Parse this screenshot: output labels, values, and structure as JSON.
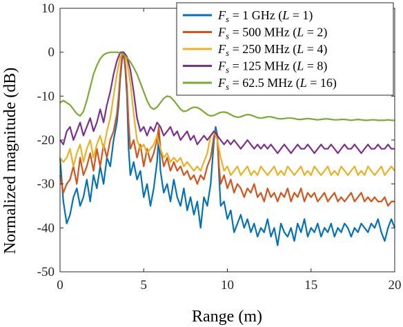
{
  "chart_data": {
    "type": "line",
    "title": "",
    "xlabel": "Range (m)",
    "ylabel": "Normalized magnitude (dB)",
    "xlim": [
      0,
      20
    ],
    "ylim": [
      -50,
      10
    ],
    "xticks": [
      0,
      5,
      10,
      15,
      20
    ],
    "yticks": [
      10,
      0,
      -10,
      -20,
      -30,
      -40,
      -50
    ],
    "xtick_labels": [
      "0",
      "5",
      "10",
      "15",
      "20"
    ],
    "ytick_labels": [
      "10",
      "0",
      "-10",
      "-20",
      "-30",
      "-40",
      "-50"
    ],
    "grid": false,
    "legend_position": "top-right",
    "series": [
      {
        "name": "Fs = 1 GHz (L = 1)",
        "legend": {
          "fs_value": "1 GHz",
          "l_value": "1"
        },
        "color": "#0072BD",
        "x": [
          0,
          0.2,
          0.4,
          0.6,
          0.8,
          1.0,
          1.2,
          1.4,
          1.6,
          1.8,
          2.0,
          2.2,
          2.4,
          2.6,
          2.8,
          3.0,
          3.2,
          3.4,
          3.5,
          3.6,
          3.7,
          3.8,
          3.9,
          4.0,
          4.1,
          4.2,
          4.4,
          4.6,
          4.8,
          5.0,
          5.2,
          5.4,
          5.6,
          5.8,
          5.9,
          6.0,
          6.2,
          6.4,
          6.6,
          6.8,
          7.0,
          7.2,
          7.4,
          7.6,
          7.8,
          8.0,
          8.2,
          8.4,
          8.6,
          8.8,
          9.0,
          9.2,
          9.3,
          9.4,
          9.5,
          9.6,
          9.8,
          10.0,
          10.2,
          10.4,
          10.6,
          10.8,
          11.0,
          11.2,
          11.4,
          11.6,
          11.8,
          12.0,
          12.2,
          12.4,
          12.6,
          12.8,
          13.0,
          13.2,
          13.4,
          13.6,
          13.8,
          14.0,
          14.2,
          14.4,
          14.6,
          14.8,
          15.0,
          15.2,
          15.4,
          15.6,
          15.8,
          16.0,
          16.2,
          16.4,
          16.6,
          16.8,
          17.0,
          17.2,
          17.4,
          17.6,
          17.8,
          18.0,
          18.2,
          18.4,
          18.6,
          18.8,
          19.0,
          19.2,
          19.4,
          19.6,
          19.8,
          20.0
        ],
        "y": [
          -24,
          -34,
          -39,
          -37,
          -33,
          -31,
          -35,
          -33,
          -29,
          -34,
          -28,
          -31,
          -26,
          -30,
          -24,
          -26,
          -20,
          -16,
          -12,
          -6,
          -2,
          0,
          -4,
          -10,
          -22,
          -28,
          -25,
          -29,
          -27,
          -33,
          -30,
          -35,
          -31,
          -25,
          -19,
          -27,
          -32,
          -30,
          -34,
          -29,
          -33,
          -35,
          -31,
          -36,
          -33,
          -37,
          -34,
          -40,
          -33,
          -35,
          -30,
          -20,
          -17,
          -19,
          -28,
          -35,
          -34,
          -38,
          -36,
          -41,
          -39,
          -37,
          -40,
          -38,
          -41,
          -39,
          -42,
          -40,
          -41,
          -38,
          -42,
          -40,
          -44,
          -39,
          -41,
          -42,
          -40,
          -43,
          -39,
          -41,
          -38,
          -42,
          -40,
          -41,
          -39,
          -42,
          -40,
          -41,
          -39,
          -42,
          -40,
          -41,
          -39,
          -40,
          -42,
          -40,
          -41,
          -39,
          -40,
          -41,
          -39,
          -40,
          -38,
          -41,
          -43,
          -40,
          -38,
          -40
        ]
      },
      {
        "name": "Fs = 500 MHz (L = 2)",
        "legend": {
          "fs_value": "500 MHz",
          "l_value": "2"
        },
        "color": "#D95319",
        "x": [
          0,
          0.2,
          0.4,
          0.6,
          0.8,
          1.0,
          1.2,
          1.4,
          1.6,
          1.8,
          2.0,
          2.2,
          2.4,
          2.6,
          2.8,
          3.0,
          3.2,
          3.4,
          3.5,
          3.6,
          3.7,
          3.8,
          3.9,
          4.0,
          4.1,
          4.2,
          4.4,
          4.6,
          4.8,
          5.0,
          5.2,
          5.4,
          5.6,
          5.8,
          5.9,
          6.0,
          6.2,
          6.4,
          6.6,
          6.8,
          7.0,
          7.2,
          7.4,
          7.6,
          7.8,
          8.0,
          8.2,
          8.4,
          8.6,
          8.8,
          9.0,
          9.2,
          9.3,
          9.4,
          9.5,
          9.6,
          9.8,
          10.0,
          10.2,
          10.4,
          10.6,
          10.8,
          11.0,
          11.2,
          11.4,
          11.6,
          11.8,
          12.0,
          12.2,
          12.4,
          12.6,
          12.8,
          13.0,
          13.2,
          13.4,
          13.6,
          13.8,
          14.0,
          14.2,
          14.4,
          14.6,
          14.8,
          15.0,
          15.2,
          15.4,
          15.6,
          15.8,
          16.0,
          16.2,
          16.4,
          16.6,
          16.8,
          17.0,
          17.2,
          17.4,
          17.6,
          17.8,
          18.0,
          18.2,
          18.4,
          18.6,
          18.8,
          19.0,
          19.2,
          19.4,
          19.6,
          19.8,
          20.0
        ],
        "y": [
          -28,
          -32,
          -30,
          -29,
          -26,
          -30,
          -24,
          -28,
          -26,
          -23,
          -27,
          -22,
          -26,
          -21,
          -24,
          -20,
          -18,
          -14,
          -10,
          -5,
          -1,
          0,
          -3,
          -8,
          -16,
          -22,
          -20,
          -24,
          -21,
          -26,
          -22,
          -25,
          -23,
          -20,
          -17,
          -22,
          -26,
          -24,
          -27,
          -25,
          -27,
          -26,
          -28,
          -27,
          -29,
          -28,
          -30,
          -28,
          -29,
          -26,
          -24,
          -19,
          -18,
          -20,
          -26,
          -30,
          -28,
          -31,
          -29,
          -32,
          -30,
          -31,
          -33,
          -31,
          -32,
          -30,
          -33,
          -32,
          -34,
          -31,
          -33,
          -32,
          -34,
          -32,
          -33,
          -31,
          -34,
          -32,
          -33,
          -31,
          -34,
          -32,
          -33,
          -32,
          -34,
          -33,
          -32,
          -34,
          -33,
          -32,
          -34,
          -33,
          -34,
          -33,
          -32,
          -34,
          -33,
          -32,
          -34,
          -33,
          -34,
          -33,
          -34,
          -34,
          -33,
          -35,
          -34,
          -34
        ]
      },
      {
        "name": "Fs = 250 MHz (L = 4)",
        "legend": {
          "fs_value": "250 MHz",
          "l_value": "4"
        },
        "color": "#EDB120",
        "x": [
          0,
          0.2,
          0.4,
          0.6,
          0.8,
          1.0,
          1.2,
          1.4,
          1.6,
          1.8,
          2.0,
          2.2,
          2.4,
          2.6,
          2.8,
          3.0,
          3.2,
          3.4,
          3.6,
          3.8,
          4.0,
          4.2,
          4.4,
          4.6,
          4.8,
          5.0,
          5.2,
          5.4,
          5.6,
          5.8,
          6.0,
          6.2,
          6.4,
          6.6,
          6.8,
          7.0,
          7.2,
          7.4,
          7.6,
          7.8,
          8.0,
          8.2,
          8.4,
          8.6,
          8.8,
          9.0,
          9.2,
          9.4,
          9.6,
          9.8,
          10.0,
          10.2,
          10.4,
          10.6,
          10.8,
          11.0,
          11.2,
          11.4,
          11.6,
          11.8,
          12.0,
          12.2,
          12.4,
          12.6,
          12.8,
          13.0,
          13.2,
          13.4,
          13.6,
          13.8,
          14.0,
          14.2,
          14.4,
          14.6,
          14.8,
          15.0,
          15.2,
          15.4,
          15.6,
          15.8,
          16.0,
          16.2,
          16.4,
          16.6,
          16.8,
          17.0,
          17.2,
          17.4,
          17.6,
          17.8,
          18.0,
          18.2,
          18.4,
          18.6,
          18.8,
          19.0,
          19.2,
          19.4,
          19.6,
          19.8,
          20.0
        ],
        "y": [
          -24,
          -25,
          -24,
          -22,
          -26,
          -23,
          -21,
          -25,
          -22,
          -20,
          -24,
          -21,
          -19,
          -22,
          -18,
          -15,
          -10,
          -5,
          -1,
          0,
          -2,
          -7,
          -14,
          -20,
          -22,
          -21,
          -23,
          -22,
          -21,
          -19,
          -22,
          -24,
          -23,
          -25,
          -24,
          -25,
          -24,
          -26,
          -25,
          -26,
          -27,
          -26,
          -27,
          -25,
          -23,
          -19,
          -18,
          -20,
          -24,
          -27,
          -26,
          -28,
          -27,
          -26,
          -28,
          -27,
          -26,
          -28,
          -27,
          -28,
          -26,
          -27,
          -28,
          -27,
          -26,
          -28,
          -27,
          -28,
          -26,
          -27,
          -28,
          -27,
          -26,
          -28,
          -27,
          -28,
          -26,
          -27,
          -28,
          -27,
          -26,
          -28,
          -27,
          -28,
          -26,
          -27,
          -28,
          -27,
          -26,
          -28,
          -27,
          -28,
          -26,
          -27,
          -28,
          -27,
          -26,
          -28,
          -27,
          -26,
          -27
        ]
      },
      {
        "name": "Fs = 125 MHz (L = 8)",
        "legend": {
          "fs_value": "125 MHz",
          "l_value": "8"
        },
        "color": "#7E2F8E",
        "x": [
          0,
          0.2,
          0.4,
          0.6,
          0.8,
          1.0,
          1.2,
          1.4,
          1.6,
          1.8,
          2.0,
          2.2,
          2.4,
          2.6,
          2.8,
          3.0,
          3.2,
          3.4,
          3.6,
          3.8,
          4.0,
          4.2,
          4.4,
          4.6,
          4.8,
          5.0,
          5.2,
          5.4,
          5.6,
          5.8,
          6.0,
          6.2,
          6.4,
          6.6,
          6.8,
          7.0,
          7.2,
          7.4,
          7.6,
          7.8,
          8.0,
          8.2,
          8.4,
          8.6,
          8.8,
          9.0,
          9.2,
          9.4,
          9.6,
          9.8,
          10.0,
          10.2,
          10.4,
          10.6,
          10.8,
          11.0,
          11.2,
          11.4,
          11.6,
          11.8,
          12.0,
          12.2,
          12.4,
          12.6,
          12.8,
          13.0,
          13.2,
          13.4,
          13.6,
          13.8,
          14.0,
          14.2,
          14.4,
          14.6,
          14.8,
          15.0,
          15.2,
          15.4,
          15.6,
          15.8,
          16.0,
          16.2,
          16.4,
          16.6,
          16.8,
          17.0,
          17.2,
          17.4,
          17.6,
          17.8,
          18.0,
          18.2,
          18.4,
          18.6,
          18.8,
          19.0,
          19.2,
          19.4,
          19.6,
          19.8,
          20.0
        ],
        "y": [
          -20,
          -21,
          -18,
          -17,
          -20,
          -18,
          -16,
          -19,
          -17,
          -15,
          -18,
          -16,
          -13,
          -16,
          -12,
          -9,
          -5,
          -2,
          0,
          0,
          -1,
          -4,
          -9,
          -15,
          -18,
          -17,
          -19,
          -17,
          -18,
          -16,
          -17,
          -19,
          -18,
          -17,
          -19,
          -18,
          -20,
          -19,
          -18,
          -20,
          -19,
          -21,
          -20,
          -19,
          -20,
          -19,
          -18,
          -19,
          -20,
          -21,
          -20,
          -21,
          -20,
          -21,
          -22,
          -21,
          -20,
          -21,
          -22,
          -21,
          -22,
          -21,
          -22,
          -21,
          -22,
          -23,
          -22,
          -21,
          -22,
          -23,
          -22,
          -21,
          -22,
          -22,
          -21,
          -22,
          -23,
          -22,
          -21,
          -22,
          -22,
          -21,
          -22,
          -23,
          -22,
          -21,
          -22,
          -22,
          -21,
          -22,
          -23,
          -22,
          -21,
          -22,
          -22,
          -21,
          -22,
          -22,
          -21,
          -22,
          -22
        ]
      },
      {
        "name": "Fs = 62.5 MHz (L = 16)",
        "legend": {
          "fs_value": "62.5 MHz",
          "l_value": "16"
        },
        "color": "#77AC30",
        "x": [
          0,
          0.2,
          0.4,
          0.6,
          0.8,
          1.0,
          1.2,
          1.4,
          1.6,
          1.8,
          2.0,
          2.2,
          2.4,
          2.6,
          2.8,
          3.0,
          3.2,
          3.4,
          3.6,
          3.8,
          4.0,
          4.2,
          4.4,
          4.6,
          4.8,
          5.0,
          5.2,
          5.4,
          5.6,
          5.8,
          6.0,
          6.2,
          6.4,
          6.6,
          6.8,
          7.0,
          7.2,
          7.4,
          7.6,
          7.8,
          8.0,
          8.2,
          8.4,
          8.6,
          8.8,
          9.0,
          9.2,
          9.4,
          9.6,
          9.8,
          10.0,
          10.2,
          10.4,
          10.6,
          10.8,
          11.0,
          11.2,
          11.4,
          11.6,
          11.8,
          12.0,
          12.2,
          12.4,
          12.6,
          12.8,
          13.0,
          13.2,
          13.4,
          13.6,
          13.8,
          14.0,
          14.2,
          14.4,
          14.6,
          14.8,
          15.0,
          15.2,
          15.4,
          15.6,
          15.8,
          16.0,
          16.2,
          16.4,
          16.6,
          16.8,
          17.0,
          17.2,
          17.4,
          17.6,
          17.8,
          18.0,
          18.2,
          18.4,
          18.6,
          18.8,
          19.0,
          19.2,
          19.4,
          19.6,
          19.8,
          20.0
        ],
        "y": [
          -11.5,
          -11,
          -11.5,
          -12,
          -13,
          -14,
          -14.5,
          -13.5,
          -11,
          -8,
          -5,
          -3,
          -1.5,
          -0.6,
          -0.2,
          0,
          0,
          0,
          -0.2,
          -0.6,
          -1.2,
          -2.2,
          -3.5,
          -5,
          -7,
          -9,
          -11,
          -12.5,
          -13,
          -12.5,
          -11.5,
          -10.5,
          -10,
          -10.2,
          -11,
          -12,
          -13,
          -13.5,
          -13.3,
          -12.8,
          -12.5,
          -12.6,
          -13,
          -13.6,
          -14.2,
          -14.5,
          -14.4,
          -14,
          -13.7,
          -13.6,
          -13.8,
          -14.2,
          -14.6,
          -14.8,
          -14.7,
          -14.4,
          -14.2,
          -14.3,
          -14.6,
          -14.9,
          -15,
          -14.9,
          -14.7,
          -14.7,
          -14.9,
          -15.1,
          -15.2,
          -15.1,
          -15,
          -15,
          -15.1,
          -15.3,
          -15.3,
          -15.2,
          -15.1,
          -15.2,
          -15.3,
          -15.4,
          -15.3,
          -15.2,
          -15.2,
          -15.3,
          -15.4,
          -15.4,
          -15.3,
          -15.3,
          -15.4,
          -15.5,
          -15.4,
          -15.3,
          -15.4,
          -15.5,
          -15.5,
          -15.4,
          -15.4,
          -15.5,
          -15.5,
          -15.5,
          -15.4,
          -15.5,
          -15.5
        ]
      }
    ]
  }
}
